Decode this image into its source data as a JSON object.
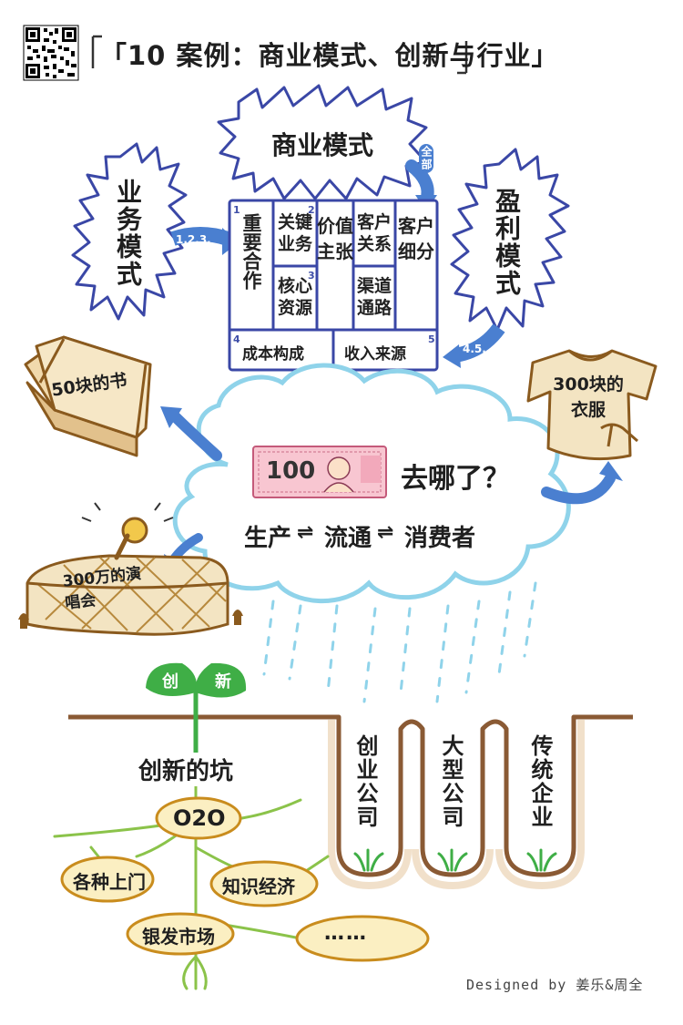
{
  "title": "「10 案例：商业模式、创新与行业」",
  "qr": {
    "icon": "qr-code-icon"
  },
  "business_model": {
    "heading": "商业模式",
    "all_label": "全部",
    "business_heading": "业务模式",
    "business_arrow_label": "1.2.3.",
    "profit_heading": "盈利模式",
    "profit_arrow_label": "4.5.",
    "canvas": {
      "key_partners": {
        "num": "1",
        "text": "重要合作"
      },
      "key_activities": {
        "num": "2",
        "text": "关键业务"
      },
      "key_resources": {
        "num": "3",
        "text": "核心资源"
      },
      "value_proposition": {
        "text": "价值主张"
      },
      "customer_relations": {
        "text": "客户关系"
      },
      "channels": {
        "text": "渠道通路"
      },
      "customer_segments": {
        "text": "客户细分"
      },
      "cost_structure": {
        "num": "4",
        "text": "成本构成"
      },
      "revenue_streams": {
        "num": "5",
        "text": "收入来源"
      }
    }
  },
  "spending": {
    "note_value": "100",
    "question": "去哪了？",
    "flow_1": "生产",
    "flow_2": "流通",
    "flow_3": "消费者",
    "book": "50块的书",
    "clothes": "300块的衣服",
    "concert": "300万的演唱会"
  },
  "pits": {
    "startup": "创业公司",
    "large": "大型公司",
    "traditional": "传统企业"
  },
  "innovation": {
    "leaf_left": "创",
    "leaf_right": "新",
    "pit_label": "创新的坑",
    "o2o": "O2O",
    "door_to_door": "各种上门",
    "knowledge_economy": "知识经济",
    "silver_market": "银发市场",
    "more": "……"
  },
  "credit": "Designed by 姜乐&周全",
  "colors": {
    "blue_border": "#3a47a6",
    "cloud_edge": "#8fd3ea",
    "soil": "#8a5a34",
    "sprout_green": "#3fae46",
    "pod_fill": "#fbefc2",
    "pod_edge": "#c98c1d",
    "arrow_blue": "#4a7fd0"
  }
}
